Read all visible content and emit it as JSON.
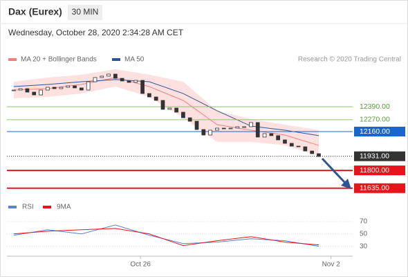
{
  "chart_data": {
    "type": "candlestick",
    "title": "Dax (Eurex)",
    "timeframe": "30 MIN",
    "subtitle": "Wednesday, October 28, 2020 2:34:28 AM CET",
    "source": "Research © 2020 Trading Central",
    "x": [
      0,
      1,
      2,
      3,
      4,
      5,
      6,
      7,
      8,
      9,
      10,
      11,
      12,
      13,
      14,
      15,
      16,
      17,
      18,
      19,
      20,
      21,
      22,
      23,
      24,
      25,
      26,
      27,
      28,
      29,
      30,
      31,
      32,
      33,
      34,
      35,
      36,
      37,
      38,
      39,
      40,
      41,
      42,
      43,
      44,
      45
    ],
    "close": [
      12545,
      12558,
      12526,
      12500,
      12545,
      12571,
      12558,
      12571,
      12584,
      12565,
      12545,
      12622,
      12661,
      12674,
      12693,
      12654,
      12629,
      12616,
      12635,
      12513,
      12481,
      12449,
      12366,
      12378,
      12340,
      12288,
      12256,
      12179,
      12128,
      12173,
      12192,
      12186,
      12192,
      12205,
      12205,
      12244,
      12109,
      12141,
      12122,
      12083,
      12051,
      12025,
      12019,
      11980,
      11955,
      11929
    ],
    "up_color": "#ffffff",
    "down_color": "#333333",
    "xlim": [
      -1,
      50
    ],
    "xticks": [
      {
        "value": 18.7,
        "label": "Oct 26"
      },
      {
        "value": 46.8,
        "label": "Nov 2"
      }
    ],
    "ylim": [
      11550,
      12770
    ],
    "overlays": [
      {
        "name": "MA 20 + Bollinger Bands",
        "color": "#f08080",
        "band_color": "#fde0e0",
        "x": [
          0,
          5,
          10,
          15,
          20,
          25,
          30,
          35,
          40,
          45
        ],
        "values": [
          12545,
          12558,
          12597,
          12661,
          12577,
          12449,
          12224,
          12173,
          12128,
          12032
        ],
        "upper": [
          12622,
          12661,
          12687,
          12738,
          12687,
          12622,
          12353,
          12276,
          12224,
          12173
        ],
        "lower": [
          12468,
          12481,
          12513,
          12577,
          12481,
          12288,
          12064,
          12064,
          12032,
          11935
        ]
      },
      {
        "name": "MA 50",
        "color": "#2f5597",
        "x": [
          0,
          5,
          10,
          15,
          20,
          25,
          30,
          35,
          40,
          45
        ],
        "values": [
          12577,
          12597,
          12622,
          12642,
          12622,
          12513,
          12353,
          12211,
          12173,
          12122
        ]
      }
    ],
    "levels": [
      {
        "value": 12390,
        "label": "12390.00",
        "color": "#8cc56a",
        "boxed": false
      },
      {
        "value": 12270,
        "label": "12270.00",
        "color": "#8cc56a",
        "boxed": false
      },
      {
        "value": 12160,
        "label": "12160.00",
        "color": "#1a66cc",
        "boxed": true
      },
      {
        "value": 11931,
        "label": "11931.00",
        "color": "#333333",
        "boxed": true,
        "dotted": true
      },
      {
        "value": 11800,
        "label": "11800.00",
        "color": "#e8141c",
        "boxed": true
      },
      {
        "value": 11635,
        "label": "11635.00",
        "color": "#e8141c",
        "boxed": true
      }
    ],
    "rsi": {
      "ylim": [
        15,
        80
      ],
      "yticks": [
        70,
        50,
        30
      ],
      "x": [
        0,
        5,
        10,
        15,
        20,
        25,
        30,
        35,
        40,
        45
      ],
      "series": [
        {
          "name": "RSI",
          "color": "#5b7fd6",
          "values": [
            47.8,
            56.7,
            50,
            64.4,
            47.8,
            34.4,
            36.7,
            42.2,
            38.9,
            30
          ]
        },
        {
          "name": "9MA",
          "color": "#e8141c",
          "values": [
            50,
            54.4,
            56.7,
            58.9,
            50,
            31.1,
            38.9,
            45.6,
            36.7,
            32.2
          ]
        }
      ]
    }
  }
}
